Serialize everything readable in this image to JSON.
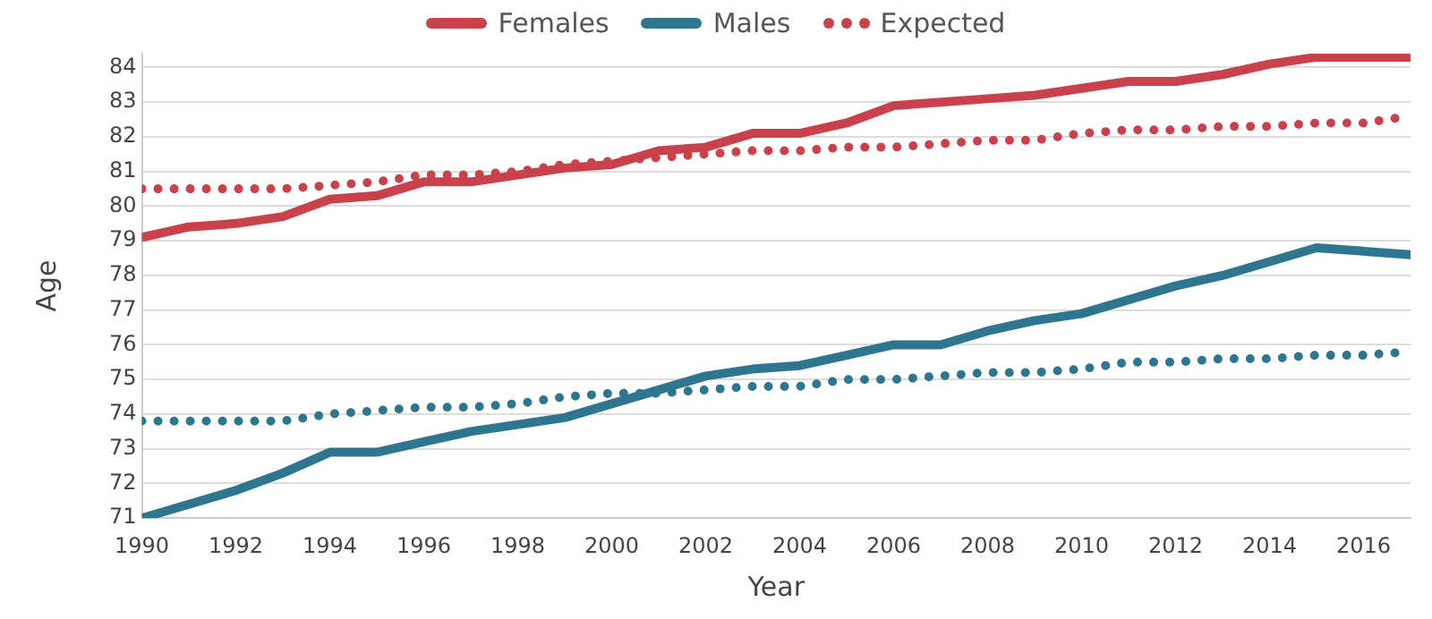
{
  "chart_data": {
    "type": "line",
    "xlabel": "Year",
    "ylabel": "Age",
    "x": [
      1990,
      1991,
      1992,
      1993,
      1994,
      1995,
      1996,
      1997,
      1998,
      1999,
      2000,
      2001,
      2002,
      2003,
      2004,
      2005,
      2006,
      2007,
      2008,
      2009,
      2010,
      2011,
      2012,
      2013,
      2014,
      2015,
      2016,
      2017
    ],
    "series": [
      {
        "name": "Females",
        "color": "#c8414b",
        "line_style": "solid",
        "values": [
          79.1,
          79.4,
          79.5,
          79.7,
          80.2,
          80.3,
          80.7,
          80.7,
          80.9,
          81.1,
          81.2,
          81.6,
          81.7,
          82.1,
          82.1,
          82.4,
          82.9,
          83.0,
          83.1,
          83.2,
          83.4,
          83.6,
          83.6,
          83.8,
          84.1,
          84.3,
          84.3,
          84.3
        ]
      },
      {
        "name": "Males",
        "color": "#2e7590",
        "line_style": "solid",
        "values": [
          71.0,
          71.4,
          71.8,
          72.3,
          72.9,
          72.9,
          73.2,
          73.5,
          73.7,
          73.9,
          74.3,
          74.7,
          75.1,
          75.3,
          75.4,
          75.7,
          76.0,
          76.0,
          76.4,
          76.7,
          76.9,
          77.3,
          77.7,
          78.0,
          78.4,
          78.8,
          78.7,
          78.6
        ]
      },
      {
        "name": "Expected",
        "color": "#c8414b",
        "line_style": "dotted",
        "values": [
          80.5,
          80.5,
          80.5,
          80.5,
          80.6,
          80.7,
          80.9,
          80.9,
          81.0,
          81.2,
          81.3,
          81.4,
          81.5,
          81.6,
          81.6,
          81.7,
          81.7,
          81.8,
          81.9,
          81.9,
          82.1,
          82.2,
          82.2,
          82.3,
          82.3,
          82.4,
          82.4,
          82.6
        ]
      },
      {
        "color": "#2e7590",
        "line_style": "dotted",
        "values": [
          73.8,
          73.8,
          73.8,
          73.8,
          74.0,
          74.1,
          74.2,
          74.2,
          74.3,
          74.5,
          74.6,
          74.6,
          74.7,
          74.8,
          74.8,
          75.0,
          75.0,
          75.1,
          75.2,
          75.2,
          75.3,
          75.5,
          75.5,
          75.6,
          75.6,
          75.7,
          75.7,
          75.8
        ]
      }
    ],
    "xlim": [
      1990,
      2017
    ],
    "xticks": [
      1990,
      1992,
      1994,
      1996,
      1998,
      2000,
      2002,
      2004,
      2006,
      2008,
      2010,
      2012,
      2014,
      2016
    ],
    "ylim": [
      71,
      84.4
    ],
    "yticks": [
      71,
      72,
      73,
      74,
      75,
      76,
      77,
      78,
      79,
      80,
      81,
      82,
      83,
      84
    ],
    "grid": "y",
    "legend": "top",
    "marker": "none"
  }
}
